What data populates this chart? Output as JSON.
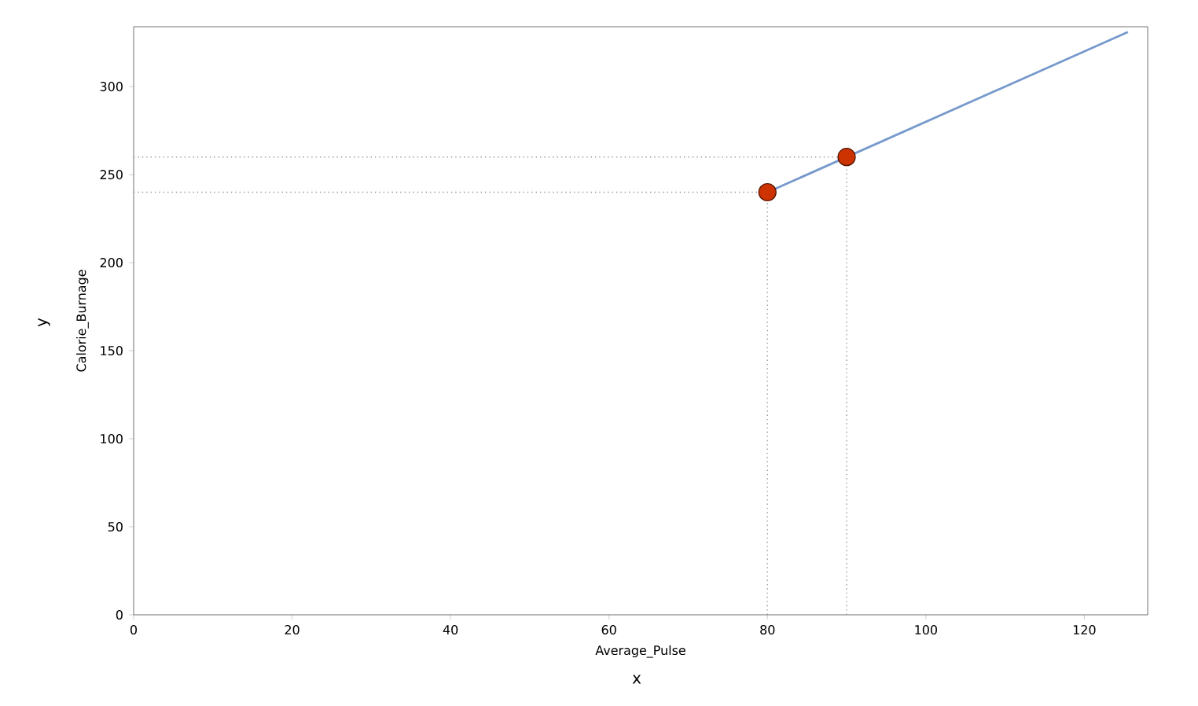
{
  "chart_data": {
    "type": "line",
    "xlabel": "Average_Pulse",
    "ylabel": "Calorie_Burnage",
    "annotations": [
      "x",
      "y"
    ],
    "xlim": [
      0,
      128
    ],
    "ylim": [
      0,
      334
    ],
    "xticks": [
      0,
      20,
      40,
      60,
      80,
      100,
      120
    ],
    "yticks": [
      0,
      50,
      100,
      150,
      200,
      250,
      300
    ],
    "series": [
      {
        "color": "#7799cc",
        "x": [
          80,
          125.5
        ],
        "values": [
          240,
          331
        ],
        "line_style": "solid"
      },
      {
        "color": "#999999",
        "x": [
          0,
          80
        ],
        "values": [
          240,
          240
        ],
        "line_style": "dotted"
      },
      {
        "color": "#999999",
        "x": [
          0,
          90
        ],
        "values": [
          260,
          260
        ],
        "line_style": "dotted"
      },
      {
        "color": "#999999",
        "x": [
          80,
          80
        ],
        "values": [
          0,
          240
        ],
        "line_style": "dotted"
      },
      {
        "color": "#999999",
        "x": [
          90,
          90
        ],
        "values": [
          0,
          260
        ],
        "line_style": "dotted"
      },
      {
        "type": "scatter",
        "color": "#cc3300",
        "x": [
          80,
          90
        ],
        "values": [
          240,
          260
        ]
      }
    ]
  }
}
